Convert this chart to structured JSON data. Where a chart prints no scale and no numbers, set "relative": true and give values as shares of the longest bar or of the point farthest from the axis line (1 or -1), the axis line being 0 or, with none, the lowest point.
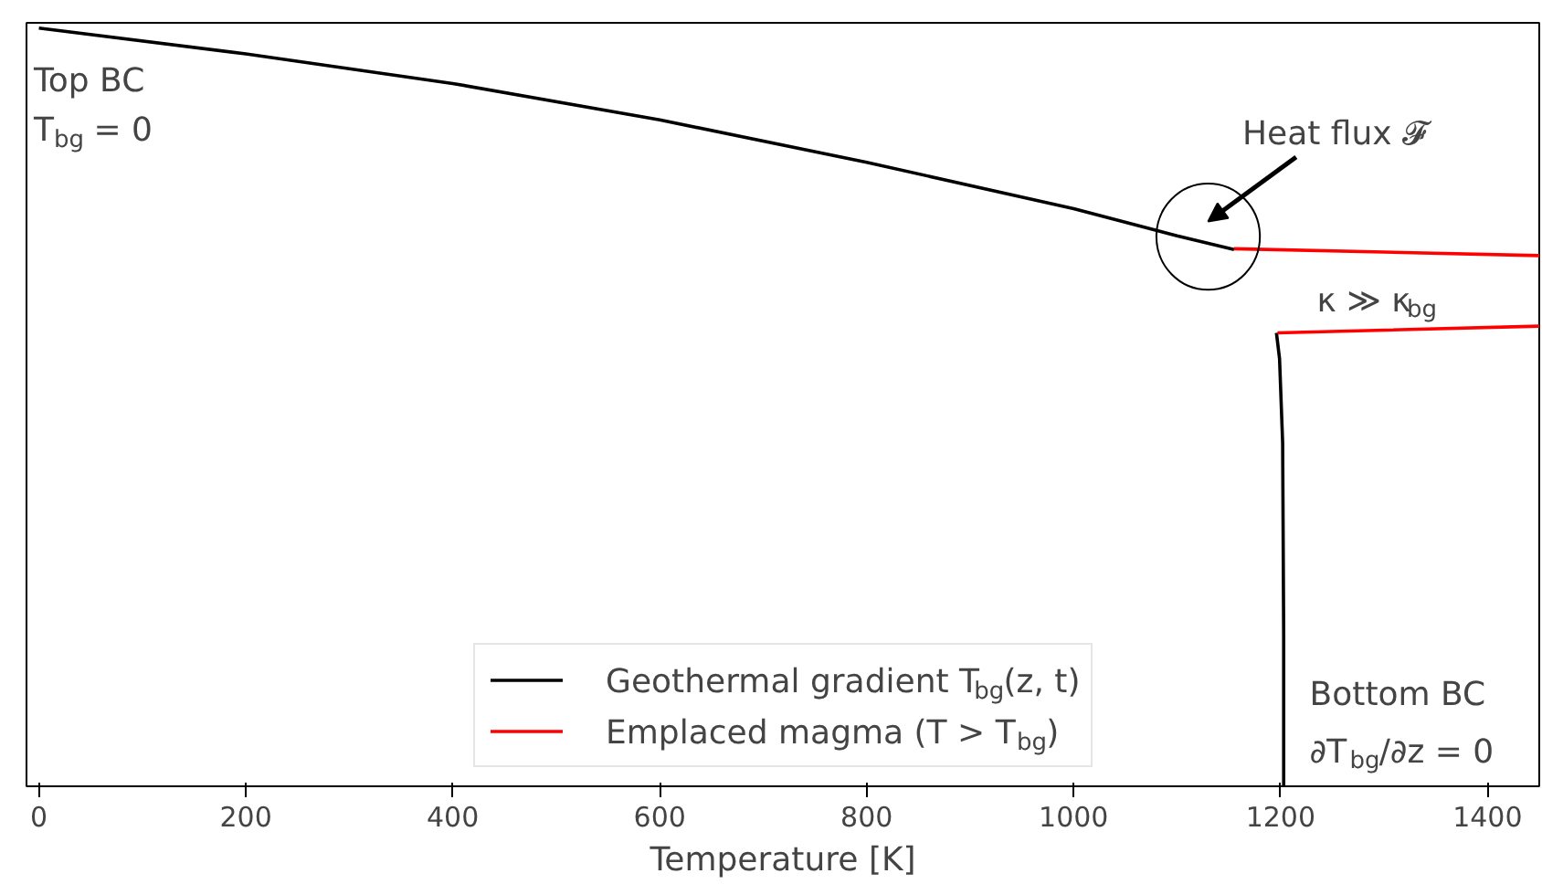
{
  "chart_data": {
    "type": "line",
    "relative": true,
    "xlabel": "Temperature [K]",
    "xlim": [
      -12,
      1450
    ],
    "xticks": [
      0,
      200,
      400,
      600,
      800,
      1000,
      1200,
      1400
    ],
    "series": [
      {
        "name": "Geothermal gradient T$_{bg}$(z, t)",
        "color": "#000000",
        "x": [
          0,
          200,
          400,
          600,
          800,
          1000,
          1100,
          1155,
          1180,
          1196,
          1199,
          1202,
          1203,
          1203
        ],
        "values": [
          1,
          0.966,
          0.927,
          0.879,
          0.823,
          0.762,
          0.726,
          0.708,
          null,
          0.598,
          0.564,
          0.453,
          0.201,
          0
        ]
      },
      {
        "name": "Emplaced magma (T > T$_{bg}$)",
        "color": "#ff0000",
        "x": [
          1155,
          1450,
          1300,
          1197,
          1450
        ],
        "values": [
          0.709,
          0.7,
          null,
          0.598,
          0.607
        ]
      }
    ],
    "annotations": [
      "Top BC",
      "T$_{bg}$ = 0",
      {
        "text": "Heat flux 𝓕",
        "x": 1130,
        "y": 0.725
      },
      "κ ≫ κ$_{bg}$",
      "Bottom BC",
      "∂T$_{bg}$/∂z = 0"
    ],
    "legend": "bottom",
    "grid": false,
    "tick_labels": "x",
    "marker": "none",
    "line_style": "solid"
  }
}
